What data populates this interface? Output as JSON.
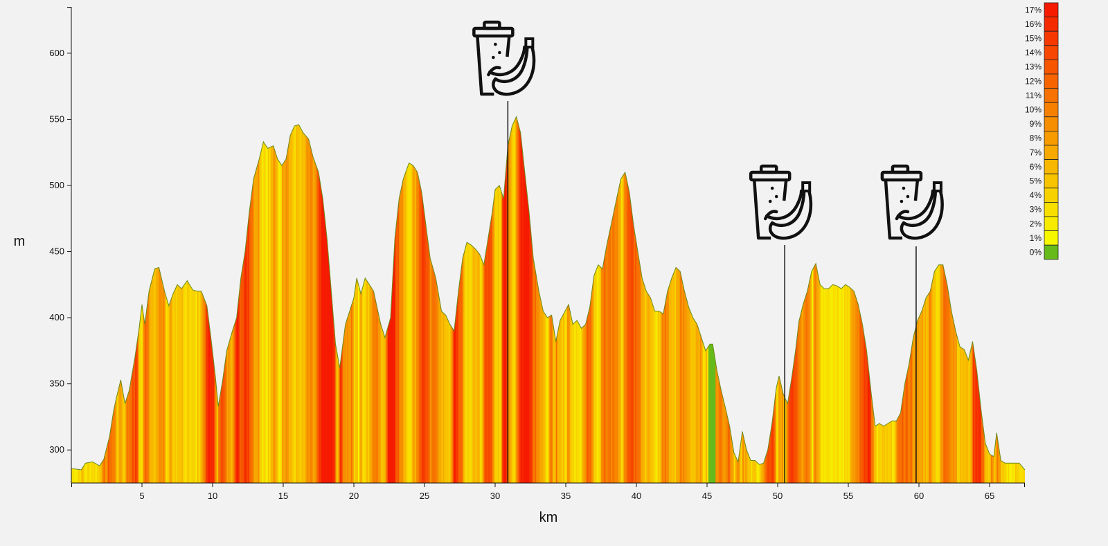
{
  "chart_data": {
    "type": "area",
    "title": "",
    "xlabel": "km",
    "ylabel": "m",
    "xlim": [
      0,
      67.5
    ],
    "ylim": [
      275,
      635
    ],
    "grid": false,
    "x_ticks": [
      5,
      10,
      15,
      20,
      25,
      30,
      35,
      40,
      45,
      50,
      55,
      60,
      65
    ],
    "y_ticks": [
      300,
      350,
      400,
      450,
      500,
      550,
      600
    ],
    "profile": [
      [
        0,
        286
      ],
      [
        0.7,
        285
      ],
      [
        1,
        290
      ],
      [
        1.5,
        291
      ],
      [
        2,
        288
      ],
      [
        2.3,
        293
      ],
      [
        2.7,
        310
      ],
      [
        3,
        330
      ],
      [
        3.2,
        340
      ],
      [
        3.5,
        353
      ],
      [
        3.8,
        335
      ],
      [
        4.1,
        345
      ],
      [
        4.5,
        370
      ],
      [
        4.8,
        392
      ],
      [
        5,
        410
      ],
      [
        5.2,
        395
      ],
      [
        5.5,
        420
      ],
      [
        5.9,
        437
      ],
      [
        6.2,
        438
      ],
      [
        6.6,
        420
      ],
      [
        6.9,
        409
      ],
      [
        7.2,
        418
      ],
      [
        7.5,
        425
      ],
      [
        7.8,
        422
      ],
      [
        8.2,
        428
      ],
      [
        8.6,
        421
      ],
      [
        8.9,
        420
      ],
      [
        9.2,
        420
      ],
      [
        9.6,
        409
      ],
      [
        9.9,
        383
      ],
      [
        10.2,
        355
      ],
      [
        10.4,
        333
      ],
      [
        10.7,
        352
      ],
      [
        11,
        375
      ],
      [
        11.4,
        390
      ],
      [
        11.7,
        400
      ],
      [
        12,
        430
      ],
      [
        12.3,
        450
      ],
      [
        12.6,
        480
      ],
      [
        12.9,
        505
      ],
      [
        13.3,
        520
      ],
      [
        13.6,
        533
      ],
      [
        13.9,
        528
      ],
      [
        14.3,
        530
      ],
      [
        14.6,
        520
      ],
      [
        14.9,
        515
      ],
      [
        15.2,
        520
      ],
      [
        15.5,
        538
      ],
      [
        15.8,
        545
      ],
      [
        16.1,
        546
      ],
      [
        16.4,
        540
      ],
      [
        16.8,
        535
      ],
      [
        17.1,
        522
      ],
      [
        17.5,
        510
      ],
      [
        17.8,
        490
      ],
      [
        18.1,
        460
      ],
      [
        18.4,
        420
      ],
      [
        18.7,
        380
      ],
      [
        19,
        362
      ],
      [
        19.4,
        395
      ],
      [
        19.7,
        405
      ],
      [
        20,
        415
      ],
      [
        20.2,
        430
      ],
      [
        20.5,
        418
      ],
      [
        20.8,
        430
      ],
      [
        21.1,
        425
      ],
      [
        21.4,
        420
      ],
      [
        21.6,
        410
      ],
      [
        21.9,
        395
      ],
      [
        22.2,
        385
      ],
      [
        22.6,
        400
      ],
      [
        22.9,
        460
      ],
      [
        23.2,
        490
      ],
      [
        23.5,
        505
      ],
      [
        23.9,
        517
      ],
      [
        24.2,
        515
      ],
      [
        24.5,
        510
      ],
      [
        24.8,
        495
      ],
      [
        25.1,
        470
      ],
      [
        25.4,
        445
      ],
      [
        25.8,
        430
      ],
      [
        26.2,
        405
      ],
      [
        26.5,
        402
      ],
      [
        26.8,
        395
      ],
      [
        27.1,
        390
      ],
      [
        27.4,
        420
      ],
      [
        27.7,
        445
      ],
      [
        28,
        457
      ],
      [
        28.3,
        455
      ],
      [
        28.6,
        452
      ],
      [
        28.9,
        448
      ],
      [
        29.2,
        440
      ],
      [
        29.5,
        460
      ],
      [
        29.8,
        480
      ],
      [
        30,
        497
      ],
      [
        30.3,
        500
      ],
      [
        30.6,
        490
      ],
      [
        30.9,
        530
      ],
      [
        31.2,
        545
      ],
      [
        31.5,
        552
      ],
      [
        31.8,
        540
      ],
      [
        32.1,
        510
      ],
      [
        32.4,
        480
      ],
      [
        32.7,
        445
      ],
      [
        33.1,
        420
      ],
      [
        33.4,
        405
      ],
      [
        33.7,
        400
      ],
      [
        34,
        402
      ],
      [
        34.3,
        382
      ],
      [
        34.6,
        398
      ],
      [
        34.9,
        404
      ],
      [
        35.2,
        410
      ],
      [
        35.5,
        395
      ],
      [
        35.8,
        398
      ],
      [
        36.1,
        392
      ],
      [
        36.4,
        395
      ],
      [
        36.7,
        408
      ],
      [
        37,
        432
      ],
      [
        37.3,
        440
      ],
      [
        37.6,
        437
      ],
      [
        37.9,
        455
      ],
      [
        38.2,
        470
      ],
      [
        38.6,
        490
      ],
      [
        38.9,
        505
      ],
      [
        39.2,
        510
      ],
      [
        39.5,
        495
      ],
      [
        39.8,
        470
      ],
      [
        40.1,
        450
      ],
      [
        40.4,
        430
      ],
      [
        40.7,
        420
      ],
      [
        41,
        415
      ],
      [
        41.3,
        405
      ],
      [
        41.6,
        405
      ],
      [
        41.9,
        403
      ],
      [
        42.2,
        420
      ],
      [
        42.5,
        430
      ],
      [
        42.8,
        438
      ],
      [
        43.1,
        435
      ],
      [
        43.4,
        420
      ],
      [
        43.7,
        408
      ],
      [
        44,
        400
      ],
      [
        44.3,
        395
      ],
      [
        44.6,
        385
      ],
      [
        44.9,
        375
      ],
      [
        45.2,
        380
      ],
      [
        45.4,
        380
      ],
      [
        45.7,
        360
      ],
      [
        46,
        345
      ],
      [
        46.3,
        332
      ],
      [
        46.6,
        318
      ],
      [
        46.9,
        298
      ],
      [
        47.2,
        291
      ],
      [
        47.5,
        314
      ],
      [
        47.8,
        300
      ],
      [
        48.1,
        292
      ],
      [
        48.4,
        292
      ],
      [
        48.7,
        289
      ],
      [
        49,
        290
      ],
      [
        49.3,
        300
      ],
      [
        49.6,
        320
      ],
      [
        49.9,
        347
      ],
      [
        50.1,
        356
      ],
      [
        50.4,
        342
      ],
      [
        50.7,
        335
      ],
      [
        51,
        355
      ],
      [
        51.3,
        378
      ],
      [
        51.5,
        397
      ],
      [
        51.8,
        410
      ],
      [
        52.1,
        420
      ],
      [
        52.4,
        435
      ],
      [
        52.7,
        441
      ],
      [
        53,
        425
      ],
      [
        53.3,
        422
      ],
      [
        53.6,
        422
      ],
      [
        53.9,
        425
      ],
      [
        54.2,
        424
      ],
      [
        54.5,
        422
      ],
      [
        54.8,
        425
      ],
      [
        55.1,
        423
      ],
      [
        55.4,
        420
      ],
      [
        55.7,
        410
      ],
      [
        56,
        395
      ],
      [
        56.3,
        375
      ],
      [
        56.6,
        345
      ],
      [
        56.9,
        318
      ],
      [
        57.2,
        320
      ],
      [
        57.5,
        318
      ],
      [
        57.8,
        320
      ],
      [
        58.1,
        322
      ],
      [
        58.4,
        322
      ],
      [
        58.7,
        328
      ],
      [
        59,
        350
      ],
      [
        59.3,
        365
      ],
      [
        59.6,
        385
      ],
      [
        59.9,
        398
      ],
      [
        60.2,
        405
      ],
      [
        60.5,
        415
      ],
      [
        60.8,
        420
      ],
      [
        61.1,
        435
      ],
      [
        61.4,
        440
      ],
      [
        61.7,
        440
      ],
      [
        62,
        425
      ],
      [
        62.3,
        405
      ],
      [
        62.6,
        390
      ],
      [
        62.9,
        378
      ],
      [
        63.2,
        376
      ],
      [
        63.5,
        368
      ],
      [
        63.8,
        382
      ],
      [
        64.1,
        360
      ],
      [
        64.4,
        330
      ],
      [
        64.7,
        305
      ],
      [
        65,
        297
      ],
      [
        65.3,
        295
      ],
      [
        65.5,
        313
      ],
      [
        65.8,
        292
      ],
      [
        66.1,
        290
      ],
      [
        66.4,
        290
      ],
      [
        66.7,
        290
      ],
      [
        67.1,
        290
      ],
      [
        67.5,
        285
      ]
    ],
    "grade_color_scale": [
      "0%",
      "1%",
      "2%",
      "3%",
      "4%",
      "5%",
      "6%",
      "7%",
      "8%",
      "9%",
      "10%",
      "11%",
      "12%",
      "13%",
      "14%",
      "15%",
      "16%",
      "17%"
    ],
    "grade_colors": [
      "#66bb1a",
      "#f7f700",
      "#f7ec00",
      "#f8df00",
      "#f8d200",
      "#f8c400",
      "#f8b700",
      "#f7a900",
      "#f79b00",
      "#f78d00",
      "#f78000",
      "#f77200",
      "#f76400",
      "#f75500",
      "#f74700",
      "#f73800",
      "#f62a00",
      "#f51a00"
    ],
    "markers": [
      {
        "km": 30.9,
        "label": "feed-station"
      },
      {
        "km": 50.5,
        "label": "feed-station"
      },
      {
        "km": 59.8,
        "label": "feed-station"
      }
    ]
  },
  "icons": {
    "feed_station": "drink-and-banana-icon"
  }
}
